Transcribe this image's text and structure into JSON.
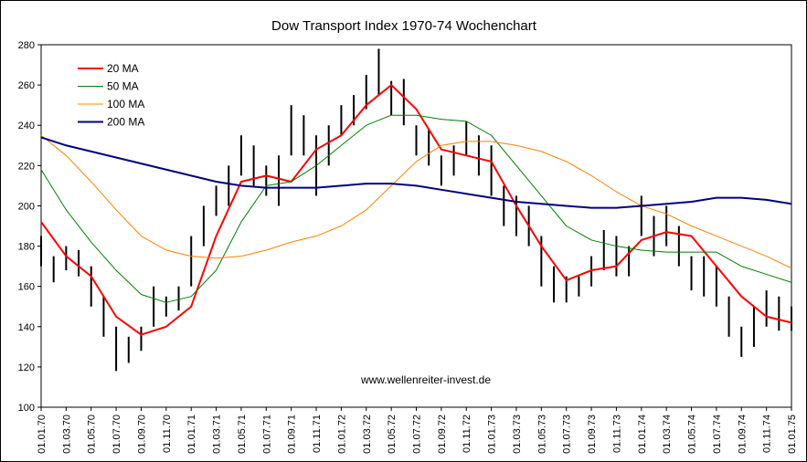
{
  "chart_data": {
    "type": "ohlc",
    "title": "Dow Transport Index 1970-74 Wochenchart",
    "annotation": "www.wellenreiter-invest.de",
    "ylim": [
      100,
      280
    ],
    "yticks": [
      100,
      120,
      140,
      160,
      180,
      200,
      220,
      240,
      260,
      280
    ],
    "xlim": [
      0,
      60
    ],
    "xticks": [
      {
        "value": 0,
        "label": "01.01.70"
      },
      {
        "value": 2,
        "label": "01.03.70"
      },
      {
        "value": 4,
        "label": "01.05.70"
      },
      {
        "value": 6,
        "label": "01.07.70"
      },
      {
        "value": 8,
        "label": "01.09.70"
      },
      {
        "value": 10,
        "label": "01.11.70"
      },
      {
        "value": 12,
        "label": "01.01.71"
      },
      {
        "value": 14,
        "label": "01.03.71"
      },
      {
        "value": 16,
        "label": "01.05.71"
      },
      {
        "value": 18,
        "label": "01.07.71"
      },
      {
        "value": 20,
        "label": "01.09.71"
      },
      {
        "value": 22,
        "label": "01.11.71"
      },
      {
        "value": 24,
        "label": "01.01.72"
      },
      {
        "value": 26,
        "label": "01.03.72"
      },
      {
        "value": 28,
        "label": "01.05.72"
      },
      {
        "value": 30,
        "label": "01.07.72"
      },
      {
        "value": 32,
        "label": "01.09.72"
      },
      {
        "value": 34,
        "label": "01.11.72"
      },
      {
        "value": 36,
        "label": "01.01.73"
      },
      {
        "value": 38,
        "label": "01.03.73"
      },
      {
        "value": 40,
        "label": "01.05.73"
      },
      {
        "value": 42,
        "label": "01.07.73"
      },
      {
        "value": 44,
        "label": "01.09.73"
      },
      {
        "value": 46,
        "label": "01.11.73"
      },
      {
        "value": 48,
        "label": "01.01.74"
      },
      {
        "value": 50,
        "label": "01.03.74"
      },
      {
        "value": 52,
        "label": "01.05.74"
      },
      {
        "value": 54,
        "label": "01.07.74"
      },
      {
        "value": 56,
        "label": "01.09.74"
      },
      {
        "value": 58,
        "label": "01.11.74"
      },
      {
        "value": 60,
        "label": "01.01.75"
      }
    ],
    "bars": {
      "color": "#000000",
      "x": [
        0,
        1,
        2,
        3,
        4,
        5,
        6,
        7,
        8,
        9,
        10,
        11,
        12,
        13,
        14,
        15,
        16,
        17,
        18,
        19,
        20,
        21,
        22,
        23,
        24,
        25,
        26,
        27,
        28,
        29,
        30,
        31,
        32,
        33,
        34,
        35,
        36,
        37,
        38,
        39,
        40,
        41,
        42,
        43,
        44,
        45,
        46,
        47,
        48,
        49,
        50,
        51,
        52,
        53,
        54,
        55,
        56,
        57,
        58,
        59,
        60
      ],
      "high": [
        185,
        175,
        180,
        178,
        170,
        155,
        140,
        135,
        140,
        160,
        155,
        160,
        185,
        200,
        210,
        220,
        235,
        230,
        220,
        225,
        250,
        245,
        235,
        240,
        250,
        255,
        265,
        278,
        262,
        263,
        240,
        238,
        225,
        230,
        242,
        235,
        230,
        210,
        205,
        200,
        185,
        170,
        165,
        165,
        175,
        188,
        185,
        180,
        205,
        195,
        200,
        190,
        175,
        175,
        170,
        155,
        140,
        150,
        158,
        155,
        150
      ],
      "low": [
        170,
        162,
        168,
        165,
        150,
        135,
        118,
        122,
        128,
        140,
        145,
        148,
        160,
        180,
        195,
        200,
        215,
        210,
        205,
        200,
        225,
        225,
        205,
        220,
        235,
        240,
        248,
        255,
        245,
        240,
        225,
        220,
        210,
        215,
        225,
        215,
        205,
        190,
        185,
        180,
        160,
        152,
        152,
        155,
        160,
        168,
        165,
        165,
        185,
        175,
        180,
        170,
        158,
        155,
        150,
        135,
        125,
        130,
        140,
        138,
        138
      ]
    },
    "x": [
      0,
      2,
      4,
      6,
      8,
      10,
      12,
      14,
      16,
      18,
      20,
      22,
      24,
      26,
      28,
      30,
      32,
      34,
      36,
      38,
      40,
      42,
      44,
      46,
      48,
      50,
      52,
      54,
      56,
      58,
      60
    ],
    "legend": "upper left",
    "series": [
      {
        "name": "20 MA",
        "color": "#ff0000",
        "width": 2,
        "values": [
          192,
          175,
          165,
          145,
          136,
          140,
          150,
          185,
          212,
          215,
          212,
          228,
          235,
          250,
          260,
          248,
          228,
          225,
          222,
          200,
          180,
          163,
          168,
          170,
          183,
          187,
          185,
          170,
          155,
          145,
          142
        ]
      },
      {
        "name": "50 MA",
        "color": "#008000",
        "width": 1,
        "values": [
          218,
          198,
          182,
          168,
          156,
          152,
          155,
          168,
          192,
          210,
          212,
          220,
          230,
          240,
          245,
          245,
          243,
          242,
          235,
          220,
          205,
          190,
          183,
          180,
          178,
          177,
          177,
          177,
          170,
          166,
          162
        ]
      },
      {
        "name": "100 MA",
        "color": "#ff8000",
        "width": 1,
        "values": [
          235,
          225,
          212,
          198,
          185,
          178,
          175,
          174,
          175,
          178,
          182,
          185,
          190,
          198,
          210,
          222,
          230,
          232,
          232,
          230,
          227,
          222,
          215,
          207,
          200,
          196,
          190,
          185,
          180,
          175,
          169
        ]
      },
      {
        "name": "200 MA",
        "color": "#000080",
        "width": 2,
        "values": [
          234,
          230,
          227,
          224,
          221,
          218,
          215,
          212,
          210,
          209,
          209,
          209,
          210,
          211,
          211,
          210,
          208,
          206,
          204,
          202,
          201,
          200,
          199,
          199,
          200,
          201,
          202,
          204,
          204,
          203,
          201
        ]
      }
    ]
  }
}
